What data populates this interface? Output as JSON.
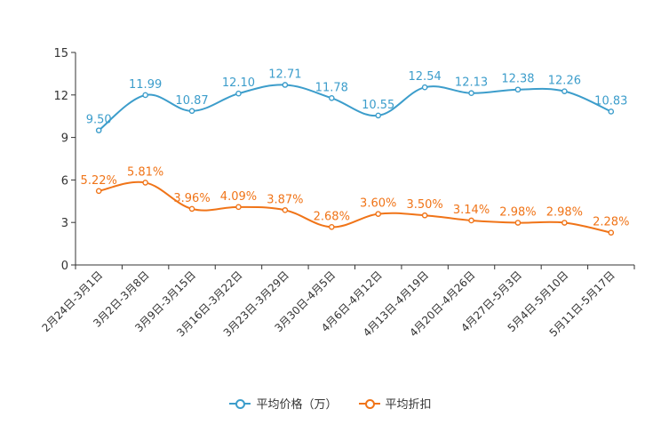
{
  "chart_data": {
    "type": "line",
    "categories": [
      "2月24日-3月1日",
      "3月2日-3月8日",
      "3月9日-3月15日",
      "3月16日-3月22日",
      "3月23日-3月29日",
      "3月30日-4月5日",
      "4月6日-4月12日",
      "4月13日-4月19日",
      "4月20日-4月26日",
      "4月27日-5月3日",
      "5月4日-5月10日",
      "5月11日-5月17日"
    ],
    "series": [
      {
        "name": "平均价格（万）",
        "color": "#3c9dcb",
        "values": [
          9.5,
          11.99,
          10.87,
          12.1,
          12.71,
          11.78,
          10.55,
          12.54,
          12.13,
          12.38,
          12.26,
          10.83
        ],
        "labels": [
          "9.50",
          "11.99",
          "10.87",
          "12.10",
          "12.71",
          "11.78",
          "10.55",
          "12.54",
          "12.13",
          "12.38",
          "12.26",
          "10.83"
        ]
      },
      {
        "name": "平均折扣",
        "color": "#f07418",
        "values": [
          5.22,
          5.81,
          3.96,
          4.09,
          3.87,
          2.68,
          3.6,
          3.5,
          3.14,
          2.98,
          2.98,
          2.28
        ],
        "labels": [
          "5.22%",
          "5.81%",
          "3.96%",
          "4.09%",
          "3.87%",
          "2.68%",
          "3.60%",
          "3.50%",
          "3.14%",
          "2.98%",
          "2.98%",
          "2.28%"
        ]
      }
    ],
    "yticks": [
      "0",
      "3",
      "6",
      "9",
      "12",
      "15"
    ],
    "ylim": [
      0,
      15
    ],
    "title": "",
    "xlabel": "",
    "ylabel": "",
    "legend": "bottom-center"
  }
}
